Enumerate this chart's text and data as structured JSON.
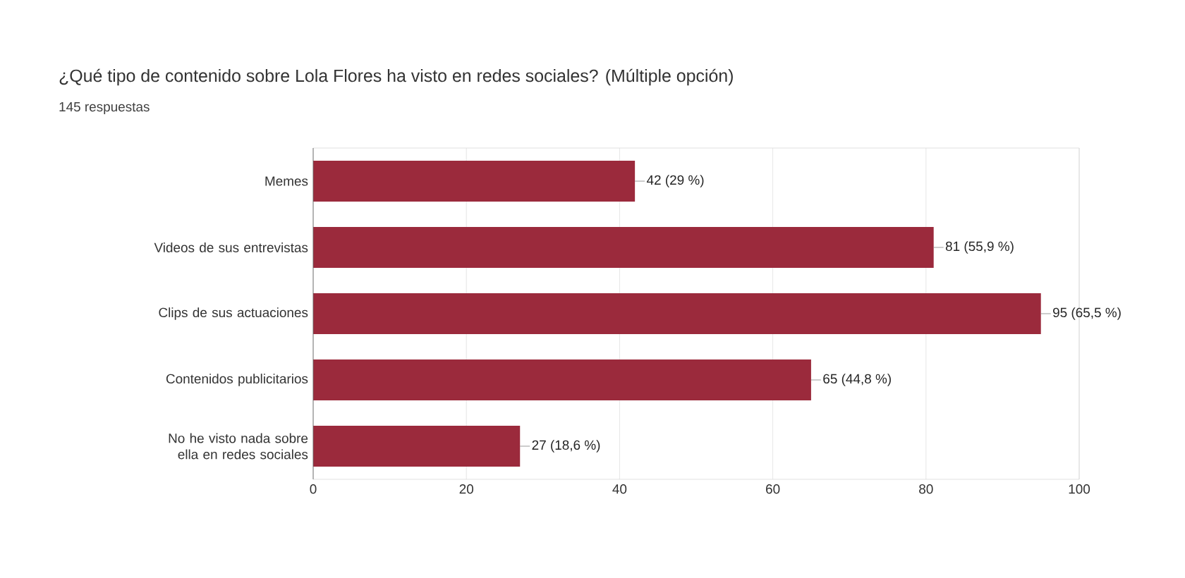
{
  "chart_data": {
    "type": "bar",
    "orientation": "horizontal",
    "title": "¿Qué tipo de contenido sobre Lola Flores ha visto en redes sociales? (Múltiple opción)",
    "subtitle": "145 respuestas",
    "categories": [
      "Memes",
      "Videos de sus entrevistas",
      "Clips de sus actuaciones",
      "Contenidos publicitarios",
      "No he visto nada sobre ella en redes sociales"
    ],
    "values": [
      42,
      81,
      95,
      65,
      27
    ],
    "value_labels": [
      "42 (29 %)",
      "81 (55,9 %)",
      "95 (65,5 %)",
      "65 (44,8 %)",
      "27 (18,6 %)"
    ],
    "color": "#9b2a3c",
    "xlim": [
      0,
      100
    ],
    "xticks": [
      0,
      20,
      40,
      60,
      80,
      100
    ],
    "grid": "x"
  }
}
